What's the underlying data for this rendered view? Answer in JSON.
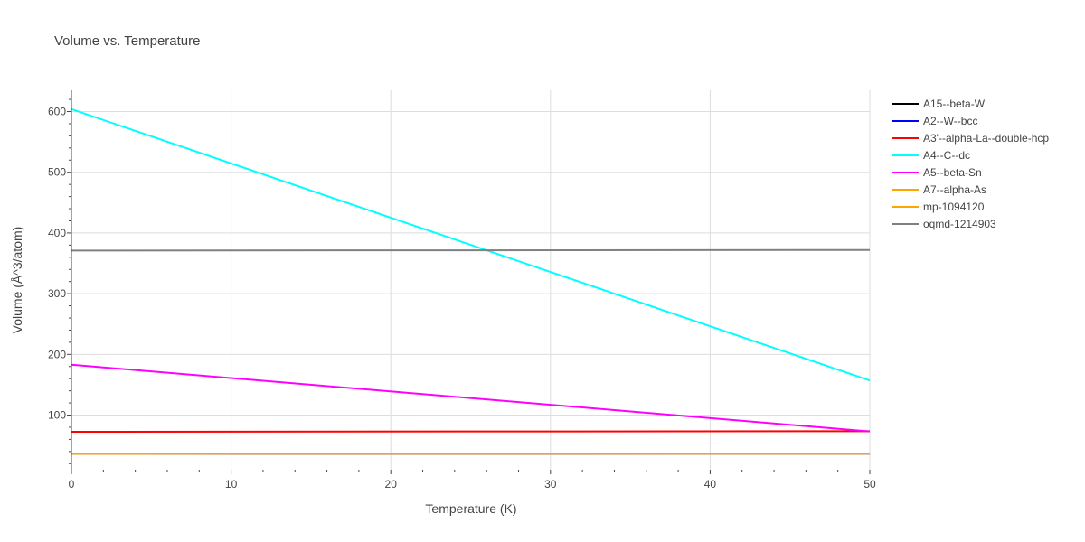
{
  "chart_data": {
    "type": "line",
    "title": "Volume vs. Temperature",
    "xlabel": "Temperature (K)",
    "ylabel": "Volume (Å^3/atom)",
    "xlim": [
      0,
      50
    ],
    "ylim": [
      10,
      635
    ],
    "xticks": [
      0,
      10,
      20,
      30,
      40,
      50
    ],
    "yticks": [
      100,
      200,
      300,
      400,
      500,
      600
    ],
    "grid": true,
    "legend_position": "right",
    "x": [
      0,
      50
    ],
    "series": [
      {
        "name": "A15--beta-W",
        "color": "#000000",
        "values": [
          36.5,
          36.8
        ]
      },
      {
        "name": "A2--W--bcc",
        "color": "#0000ff",
        "values": [
          36.0,
          36.2
        ]
      },
      {
        "name": "A3'--alpha-La--double-hcp",
        "color": "#ff0000",
        "values": [
          72.5,
          73.5
        ]
      },
      {
        "name": "A4--C--dc",
        "color": "#00ffff",
        "values": [
          604,
          157
        ]
      },
      {
        "name": "A5--beta-Sn",
        "color": "#ff00ff",
        "values": [
          183,
          73
        ]
      },
      {
        "name": "A7--alpha-As",
        "color": "#ffa500",
        "values": [
          36.3,
          36.5
        ]
      },
      {
        "name": "mp-1094120",
        "color": "#ffa500",
        "values": [
          36.3,
          36.5
        ]
      },
      {
        "name": "oqmd-1214903",
        "color": "#808080",
        "values": [
          371,
          372
        ]
      }
    ]
  }
}
